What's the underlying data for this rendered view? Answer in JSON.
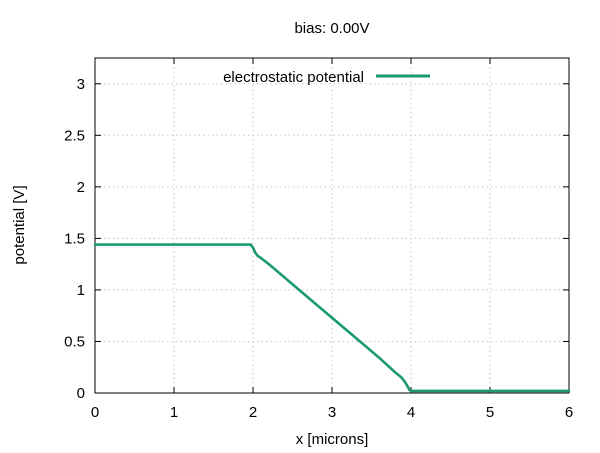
{
  "chart_data": {
    "type": "line",
    "title": "bias: 0.00V",
    "xlabel": "x [microns]",
    "ylabel": "potential [V]",
    "xlim": [
      0,
      6
    ],
    "ylim": [
      0,
      3.25
    ],
    "xticks": [
      "0",
      "1",
      "2",
      "3",
      "4",
      "5",
      "6"
    ],
    "yticks": [
      "0",
      "0.5",
      "1",
      "1.5",
      "2",
      "2.5",
      "3"
    ],
    "grid": true,
    "legend_position": "top-center",
    "series": [
      {
        "name": "electrostatic potential",
        "color": "#1a9a6e",
        "x": [
          0,
          0.5,
          1.0,
          1.5,
          1.97,
          2.0,
          2.03,
          2.06,
          2.1,
          2.2,
          2.4,
          2.6,
          2.8,
          3.0,
          3.2,
          3.4,
          3.6,
          3.8,
          3.88,
          3.93,
          3.96,
          3.98,
          4.0,
          4.5,
          5.0,
          5.5,
          6.0
        ],
        "y": [
          1.44,
          1.44,
          1.44,
          1.44,
          1.44,
          1.41,
          1.36,
          1.33,
          1.31,
          1.25,
          1.12,
          0.99,
          0.86,
          0.73,
          0.6,
          0.47,
          0.34,
          0.2,
          0.15,
          0.1,
          0.06,
          0.03,
          0.02,
          0.02,
          0.02,
          0.02,
          0.02
        ]
      }
    ]
  }
}
